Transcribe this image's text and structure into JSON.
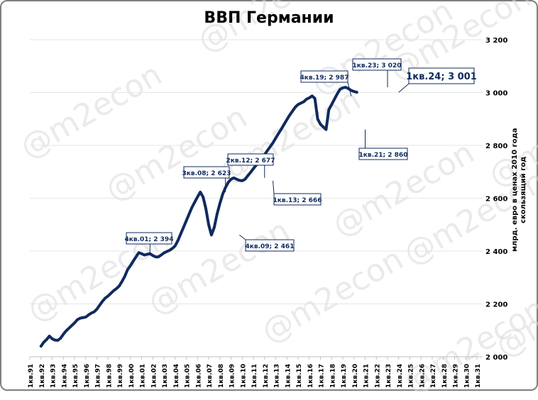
{
  "page": {
    "watermark": "@m2econ"
  },
  "chart_data": {
    "type": "line",
    "title": "ВВП Германии",
    "ylabel_lines": [
      "млрд. евро в ценах 2010 года",
      "скользящий год"
    ],
    "ylim": [
      2000,
      3200
    ],
    "y_ticks": [
      2000,
      2200,
      2400,
      2600,
      2800,
      3000,
      3200
    ],
    "y_tick_labels": [
      "2 000",
      "2 200",
      "2 400",
      "2 600",
      "2 800",
      "3 000",
      "3 200"
    ],
    "x_tick_labels": [
      "1кв.91",
      "1кв.92",
      "1кв.93",
      "1кв.94",
      "1кв.95",
      "1кв.96",
      "1кв.97",
      "1кв.98",
      "1кв.99",
      "1кв.00",
      "1кв.01",
      "1кв.02",
      "1кв.03",
      "1кв.04",
      "1кв.05",
      "1кв.06",
      "1кв.07",
      "1кв.08",
      "1кв.09",
      "1кв.10",
      "1кв.11",
      "1кв.12",
      "1кв.13",
      "1кв.14",
      "1кв.15",
      "1кв.16",
      "1кв.17",
      "1кв.18",
      "1кв.19",
      "1кв.20",
      "1кв.21",
      "1кв.22",
      "1кв.23",
      "1кв.24",
      "1кв.25",
      "1кв.26",
      "1кв.27",
      "1кв.28",
      "1кв.29",
      "1кв.30",
      "1кв.31"
    ],
    "line_color": "#0f2a5e",
    "series": [
      {
        "x_start_quarter_index": 4,
        "values": [
          2040,
          2055,
          2065,
          2078,
          2068,
          2063,
          2062,
          2070,
          2085,
          2098,
          2108,
          2118,
          2128,
          2140,
          2146,
          2148,
          2150,
          2158,
          2165,
          2170,
          2180,
          2195,
          2210,
          2222,
          2230,
          2240,
          2250,
          2258,
          2268,
          2285,
          2305,
          2330,
          2345,
          2362,
          2378,
          2394,
          2390,
          2385,
          2388,
          2390,
          2383,
          2378,
          2378,
          2385,
          2393,
          2398,
          2403,
          2410,
          2420,
          2440,
          2465,
          2490,
          2515,
          2540,
          2565,
          2585,
          2605,
          2623,
          2605,
          2560,
          2500,
          2461,
          2490,
          2540,
          2580,
          2615,
          2640,
          2660,
          2672,
          2677,
          2672,
          2668,
          2666,
          2672,
          2685,
          2698,
          2712,
          2725,
          2738,
          2752,
          2765,
          2780,
          2795,
          2810,
          2828,
          2845,
          2862,
          2880,
          2898,
          2915,
          2930,
          2945,
          2955,
          2960,
          2965,
          2975,
          2980,
          2987,
          2978,
          2900,
          2880,
          2870,
          2860,
          2935,
          2955,
          2975,
          2995,
          3012,
          3018,
          3020,
          3015,
          3008,
          3004,
          3001
        ]
      }
    ],
    "annotations": [
      {
        "label": "4кв.01; 2 394"
      },
      {
        "label": "3кв.08; 2 623"
      },
      {
        "label": "4кв.09; 2 461"
      },
      {
        "label": "2кв.12; 2 677"
      },
      {
        "label": "1кв.13; 2 666"
      },
      {
        "label": "4кв.19; 2 987"
      },
      {
        "label": "1кв.21; 2 860"
      },
      {
        "label": "1кв.23; 3 020"
      },
      {
        "label": "1кв.24; 3 001"
      }
    ]
  }
}
